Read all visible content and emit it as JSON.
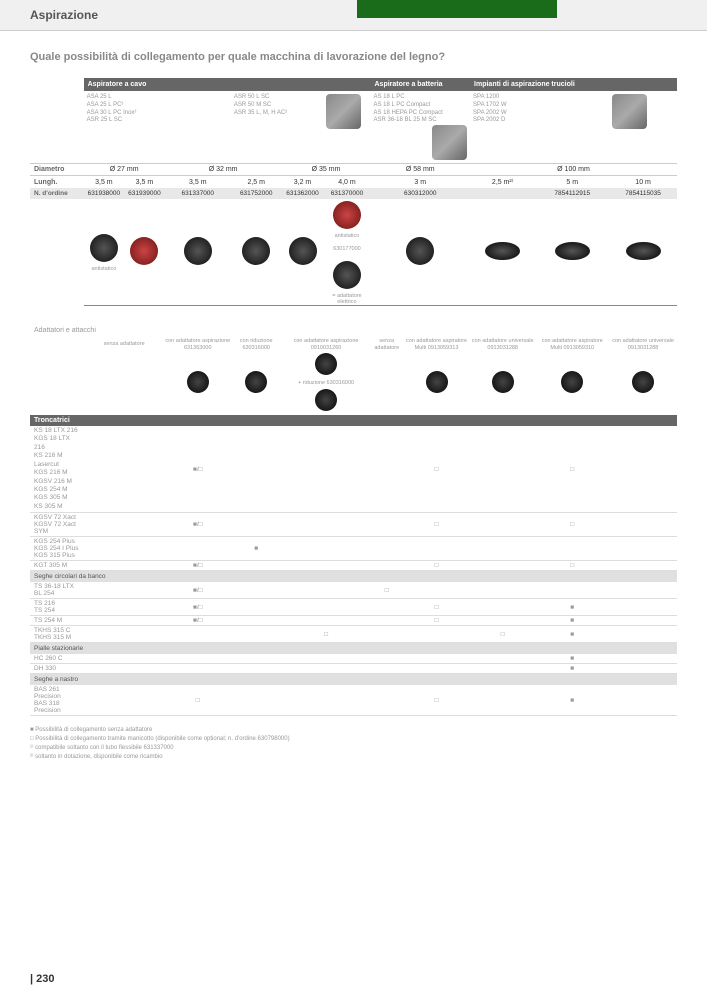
{
  "header": {
    "title": "Aspirazione"
  },
  "subheading": "Quale possibilità di collegamento per quale macchina di lavorazione del legno?",
  "categories": {
    "cable": "Aspiratore a cavo",
    "battery": "Aspiratore a batteria",
    "chips": "Impianti di aspirazione trucioli"
  },
  "products": {
    "cable1": "ASA 25 L\nASA 25 L PC²\nASA 30 L PC Inox²\nASR 25 L SC",
    "cable2": "ASR 50 L SC\nASR 50 M SC\nASR 35 L, M, H AC²",
    "battery1": "AS 18 L PC\nAS 18 L PC Compact\nAS 18 HEPA PC Compact\nASR 36-18 BL 25 M SC",
    "chips1": "SPA 1200\nSPA 1702 W\nSPA 2002 W\nSPA 2002 D"
  },
  "spec_labels": {
    "diameter": "Diametro",
    "length": "Lungh.",
    "order": "N. d'ordine"
  },
  "diameters": [
    "Ø 27 mm",
    "Ø 32 mm",
    "Ø 35 mm",
    "Ø 58 mm",
    "Ø 100 mm"
  ],
  "lengths": [
    "3,5 m",
    "3,5 m",
    "3,5 m",
    "2,5 m",
    "3,2 m",
    "4,0 m",
    "3 m",
    "2,5 m²⁾",
    "5 m",
    "10 m"
  ],
  "orders": [
    "631938000",
    "631939000",
    "631337000",
    "631752000",
    "631362000",
    "631370000",
    "630312000",
    "",
    "7854112915",
    "7854115035"
  ],
  "antistatic": "antistatico",
  "order_extra": "630177000",
  "adattatore_elettrico": "= adattatore elettrico",
  "adapters_section": "Adattatori e attacchi",
  "adapter_texts": {
    "senza": "senza adattatore",
    "con_aspirazione": "con adattatore aspirazione 631363000",
    "con_riduzione": "con riduzione 630316000",
    "con_adattatore_asp": "con adattatore aspirazione 0910031260",
    "riduzione_extra": "+ riduzione 630316000",
    "con_adattatore_multi": "con adattatore aspiratore Multi 0913059313",
    "con_adattatore_uni": "con adattatore universale 0913031288",
    "con_adattatore_multi2": "con adattatore aspiratore Multi 0913059310"
  },
  "sections": {
    "troncatrici": "Troncatrici",
    "seghe_banco": "Seghe circolari da banco",
    "pialle": "Pialle stazionarie",
    "seghe_nastro": "Seghe a nastro"
  },
  "machines_troncatrici": [
    "KS 18 LTX 216",
    "KGS 18 LTX 216",
    "KS 216 M Lasercut",
    "KGS 216 M",
    "KGSV 216 M",
    "KGS 254 M",
    "KGS 305 M",
    "KS 305 M"
  ],
  "machines_tr2": [
    "KGSV 72 Xact",
    "KGSV 72 Xact SYM"
  ],
  "machines_tr3": [
    "KGS 254 Plus",
    "KGS 254 I Plus",
    "KGS 315 Plus"
  ],
  "machines_tr4": [
    "KGT 305 M"
  ],
  "machines_banco": [
    "TS 36-18 LTX BL 254",
    "TS 216",
    "TS 254",
    "TS 254 M",
    "TKHS 315 C",
    "TKHS 315 M"
  ],
  "machines_pialle": [
    "HC 260 C",
    "DH 330"
  ],
  "machines_nastro": [
    "BAS 261 Precision",
    "BAS 318 Precision"
  ],
  "marks": {
    "square_empty": "□",
    "square_filled": "■",
    "combo": "■/□"
  },
  "footnotes": [
    "■ Possibilità di collegamento senza adattatore",
    "□ Possibilità di collegamento tramite manicotto (disponibile come optional; n. d'ordine 630798000)",
    "¹⁾ compatibile soltanto con il tubo flessibile 631337000",
    "²⁾ soltanto in dotazione, disponibile come ricambio"
  ],
  "page_number": "| 230"
}
